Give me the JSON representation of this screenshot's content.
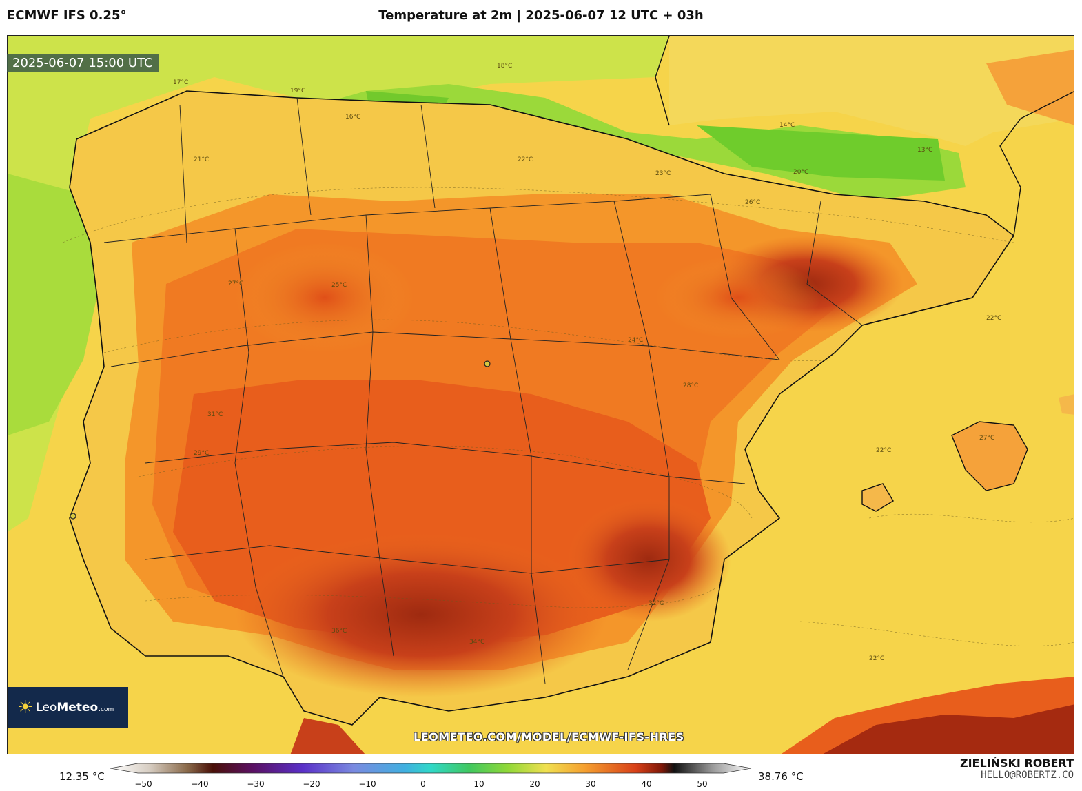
{
  "header": {
    "model": "ECMWF IFS 0.25°",
    "title": "Temperature at 2m | 2025-06-07 12 UTC + 03h"
  },
  "map": {
    "valid_time": "2025-06-07 15:00 UTC",
    "watermark": "LEOMETEO.COM/MODEL/ECMWF-IFS-HRES",
    "isotherm_labels": [
      "18°C",
      "19°C",
      "17°C",
      "16°C",
      "21°C",
      "22°C",
      "23°C",
      "25°C",
      "26°C",
      "27°C",
      "29°C",
      "31°C",
      "32°C",
      "34°C",
      "36°C",
      "14°C",
      "13°C",
      "20°C",
      "24°C",
      "28°C"
    ]
  },
  "logo": {
    "brand_light": "Leo",
    "brand_bold": "Meteo",
    "suffix": ".com"
  },
  "colorbar": {
    "min_value": "12.35 °C",
    "max_value": "38.76 °C",
    "ticks": [
      "−50",
      "−40",
      "−30",
      "−20",
      "−10",
      "0",
      "10",
      "20",
      "30",
      "40",
      "50"
    ]
  },
  "author": {
    "name": "ZIELIŃSKI ROBERT",
    "email": "HELLO@ROBERTZ.CO"
  },
  "colors": {
    "sea_warm": "#f7d34a",
    "cool_green": "#8ed63a",
    "land_orange": "#f48a1e",
    "hot_red": "#d9401a",
    "very_hot": "#a52a10"
  }
}
